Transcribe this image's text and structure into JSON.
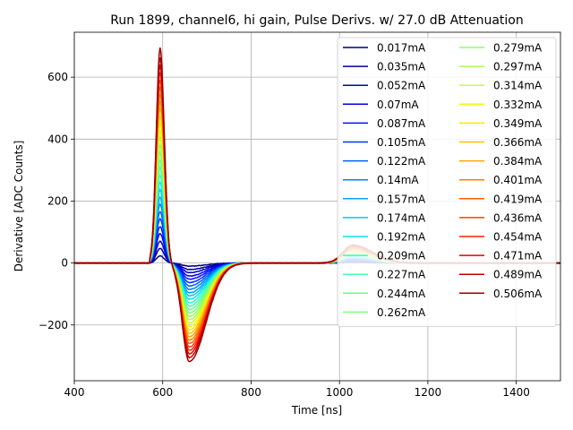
{
  "chart_data": {
    "type": "line",
    "title": "Run 1899, channel6, hi gain, Pulse Derivs. w/ 27.0 dB Attenuation",
    "xlabel": "Time [ns]",
    "ylabel": "Derivative [ADC Counts]",
    "xlim": [
      400,
      1500
    ],
    "ylim": [
      -380,
      745
    ],
    "xticks": [
      400,
      600,
      800,
      1000,
      1200,
      1400
    ],
    "xtick_labels": [
      "400",
      "600",
      "800",
      "1000",
      "1200",
      "1400"
    ],
    "yticks": [
      -200,
      0,
      200,
      400,
      600
    ],
    "ytick_labels": [
      "−200",
      "0",
      "200",
      "400",
      "600"
    ],
    "grid": true,
    "legend_position": "top-right",
    "legend_columns": 2,
    "pulse_shape": {
      "baseline_until_ns": 570,
      "positive_peak_time_ns": 594,
      "negative_peak_time_ns": 660,
      "overshoot_peak_time_ns": 1030
    },
    "series": [
      {
        "name": "0.017mA",
        "color": "#00007f",
        "peak": 23,
        "trough": -10,
        "overshoot": 2
      },
      {
        "name": "0.035mA",
        "color": "#0000a3",
        "peak": 47,
        "trough": -21,
        "overshoot": 4
      },
      {
        "name": "0.052mA",
        "color": "#0000c8",
        "peak": 70,
        "trough": -31,
        "overshoot": 6
      },
      {
        "name": "0.07mA",
        "color": "#0000ed",
        "peak": 95,
        "trough": -42,
        "overshoot": 8
      },
      {
        "name": "0.087mA",
        "color": "#0010ff",
        "peak": 118,
        "trough": -52,
        "overshoot": 10
      },
      {
        "name": "0.105mA",
        "color": "#0034ff",
        "peak": 143,
        "trough": -63,
        "overshoot": 12
      },
      {
        "name": "0.122mA",
        "color": "#005cff",
        "peak": 166,
        "trough": -74,
        "overshoot": 14
      },
      {
        "name": "0.14mA",
        "color": "#0080ff",
        "peak": 190,
        "trough": -85,
        "overshoot": 16
      },
      {
        "name": "0.157mA",
        "color": "#00a4ff",
        "peak": 213,
        "trough": -96,
        "overshoot": 18
      },
      {
        "name": "0.174mA",
        "color": "#00c8ff",
        "peak": 237,
        "trough": -106,
        "overshoot": 20
      },
      {
        "name": "0.192mA",
        "color": "#0ce5eb",
        "peak": 261,
        "trough": -117,
        "overshoot": 22
      },
      {
        "name": "0.209mA",
        "color": "#2cffca",
        "peak": 284,
        "trough": -128,
        "overshoot": 24
      },
      {
        "name": "0.227mA",
        "color": "#4affad",
        "peak": 309,
        "trough": -139,
        "overshoot": 26
      },
      {
        "name": "0.244mA",
        "color": "#66ff90",
        "peak": 332,
        "trough": -150,
        "overshoot": 28
      },
      {
        "name": "0.262mA",
        "color": "#7fff7a",
        "peak": 357,
        "trough": -161,
        "overshoot": 30
      },
      {
        "name": "0.279mA",
        "color": "#90ff66",
        "peak": 380,
        "trough": -172,
        "overshoot": 32
      },
      {
        "name": "0.297mA",
        "color": "#adff4a",
        "peak": 404,
        "trough": -183,
        "overshoot": 34
      },
      {
        "name": "0.314mA",
        "color": "#caff2c",
        "peak": 427,
        "trough": -194,
        "overshoot": 36
      },
      {
        "name": "0.332mA",
        "color": "#ebfc0c",
        "peak": 451,
        "trough": -205,
        "overshoot": 38
      },
      {
        "name": "0.349mA",
        "color": "#ffe600",
        "peak": 474,
        "trough": -216,
        "overshoot": 40
      },
      {
        "name": "0.366mA",
        "color": "#ffc400",
        "peak": 498,
        "trough": -227,
        "overshoot": 42
      },
      {
        "name": "0.384mA",
        "color": "#ffa400",
        "peak": 522,
        "trough": -238,
        "overshoot": 44
      },
      {
        "name": "0.401mA",
        "color": "#ff8200",
        "peak": 545,
        "trough": -249,
        "overshoot": 46
      },
      {
        "name": "0.419mA",
        "color": "#ff6200",
        "peak": 569,
        "trough": -260,
        "overshoot": 48
      },
      {
        "name": "0.436mA",
        "color": "#ff4000",
        "peak": 592,
        "trough": -271,
        "overshoot": 50
      },
      {
        "name": "0.454mA",
        "color": "#ff2000",
        "peak": 617,
        "trough": -282,
        "overshoot": 52
      },
      {
        "name": "0.471mA",
        "color": "#e40000",
        "peak": 640,
        "trough": -293,
        "overshoot": 54
      },
      {
        "name": "0.489mA",
        "color": "#bf0000",
        "peak": 664,
        "trough": -305,
        "overshoot": 56
      },
      {
        "name": "0.506mA",
        "color": "#9a0000",
        "peak": 695,
        "trough": -318,
        "overshoot": 58
      }
    ]
  }
}
